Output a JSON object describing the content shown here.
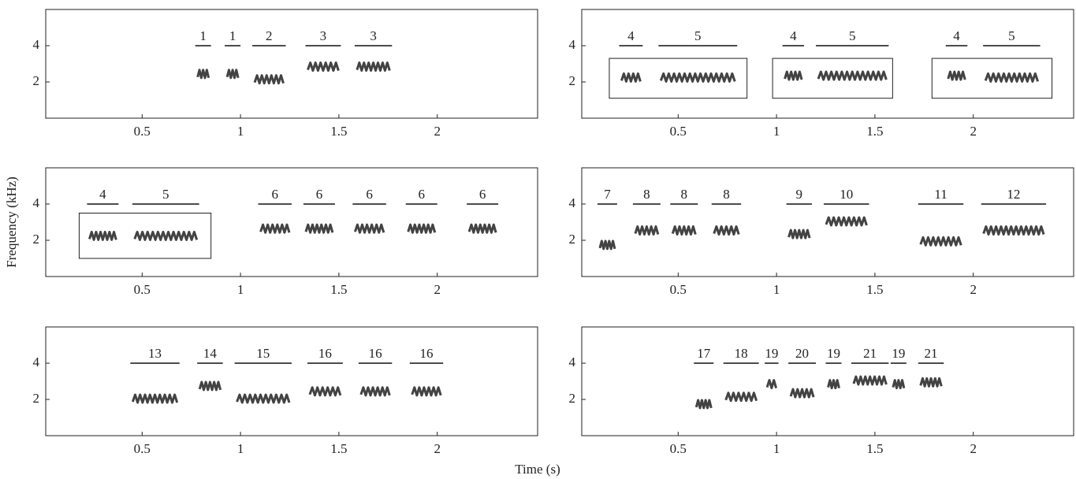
{
  "y_label": "Frequency (kHz)",
  "x_label": "Time (s)",
  "chart_data": [
    {
      "type": "spectrogram",
      "xlim": [
        0.01,
        2.51
      ],
      "ylim": [
        0,
        6
      ],
      "xticks": [
        0.5,
        1,
        1.5,
        2
      ],
      "yticks": [
        2,
        4
      ],
      "syllables": [
        {
          "label": "1",
          "start": 0.77,
          "end": 0.85,
          "freq": 2.4
        },
        {
          "label": "1",
          "start": 0.92,
          "end": 1.0,
          "freq": 2.4
        },
        {
          "label": "2",
          "start": 1.06,
          "end": 1.23,
          "freq": 2.1
        },
        {
          "label": "3",
          "start": 1.33,
          "end": 1.51,
          "freq": 2.8
        },
        {
          "label": "3",
          "start": 1.58,
          "end": 1.77,
          "freq": 2.8
        }
      ],
      "boxes": []
    },
    {
      "type": "spectrogram",
      "xlim": [
        0.01,
        2.51
      ],
      "ylim": [
        0,
        6
      ],
      "xticks": [
        0.5,
        1,
        1.5,
        2
      ],
      "yticks": [
        2,
        4
      ],
      "syllables": [
        {
          "label": "4",
          "start": 0.2,
          "end": 0.32,
          "freq": 2.2
        },
        {
          "label": "5",
          "start": 0.4,
          "end": 0.8,
          "freq": 2.2
        },
        {
          "label": "4",
          "start": 1.03,
          "end": 1.14,
          "freq": 2.3
        },
        {
          "label": "5",
          "start": 1.2,
          "end": 1.57,
          "freq": 2.3
        },
        {
          "label": "4",
          "start": 1.86,
          "end": 1.97,
          "freq": 2.3
        },
        {
          "label": "5",
          "start": 2.05,
          "end": 2.34,
          "freq": 2.2
        }
      ],
      "boxes": [
        {
          "start": 0.15,
          "end": 0.85,
          "low": 1.1,
          "high": 3.3
        },
        {
          "start": 0.98,
          "end": 1.59,
          "low": 1.1,
          "high": 3.3
        },
        {
          "start": 1.79,
          "end": 2.4,
          "low": 1.1,
          "high": 3.3
        }
      ]
    },
    {
      "type": "spectrogram",
      "xlim": [
        0.01,
        2.51
      ],
      "ylim": [
        0,
        6
      ],
      "xticks": [
        0.5,
        1,
        1.5,
        2
      ],
      "yticks": [
        2,
        4
      ],
      "syllables": [
        {
          "label": "4",
          "start": 0.22,
          "end": 0.38,
          "freq": 2.2
        },
        {
          "label": "5",
          "start": 0.45,
          "end": 0.79,
          "freq": 2.2
        },
        {
          "label": "6",
          "start": 1.09,
          "end": 1.26,
          "freq": 2.6
        },
        {
          "label": "6",
          "start": 1.32,
          "end": 1.48,
          "freq": 2.6
        },
        {
          "label": "6",
          "start": 1.57,
          "end": 1.74,
          "freq": 2.6
        },
        {
          "label": "6",
          "start": 1.84,
          "end": 2.0,
          "freq": 2.6
        },
        {
          "label": "6",
          "start": 2.15,
          "end": 2.31,
          "freq": 2.6
        }
      ],
      "boxes": [
        {
          "start": 0.18,
          "end": 0.85,
          "low": 1.0,
          "high": 3.5
        }
      ]
    },
    {
      "type": "spectrogram",
      "xlim": [
        0.01,
        2.51
      ],
      "ylim": [
        0,
        6
      ],
      "xticks": [
        0.5,
        1,
        1.5,
        2
      ],
      "yticks": [
        2,
        4
      ],
      "syllables": [
        {
          "label": "7",
          "start": 0.09,
          "end": 0.19,
          "freq": 1.7
        },
        {
          "label": "8",
          "start": 0.27,
          "end": 0.41,
          "freq": 2.5
        },
        {
          "label": "8",
          "start": 0.46,
          "end": 0.6,
          "freq": 2.5
        },
        {
          "label": "8",
          "start": 0.67,
          "end": 0.82,
          "freq": 2.5
        },
        {
          "label": "9",
          "start": 1.05,
          "end": 1.18,
          "freq": 2.3
        },
        {
          "label": "10",
          "start": 1.24,
          "end": 1.47,
          "freq": 3.0
        },
        {
          "label": "11",
          "start": 1.72,
          "end": 1.95,
          "freq": 1.9
        },
        {
          "label": "12",
          "start": 2.04,
          "end": 2.37,
          "freq": 2.5
        }
      ],
      "boxes": []
    },
    {
      "type": "spectrogram",
      "xlim": [
        0.01,
        2.51
      ],
      "ylim": [
        0,
        6
      ],
      "xticks": [
        0.5,
        1,
        1.5,
        2
      ],
      "yticks": [
        2,
        4
      ],
      "syllables": [
        {
          "label": "13",
          "start": 0.44,
          "end": 0.69,
          "freq": 2.0
        },
        {
          "label": "14",
          "start": 0.78,
          "end": 0.91,
          "freq": 2.7
        },
        {
          "label": "15",
          "start": 0.97,
          "end": 1.26,
          "freq": 2.0
        },
        {
          "label": "16",
          "start": 1.34,
          "end": 1.52,
          "freq": 2.4
        },
        {
          "label": "16",
          "start": 1.6,
          "end": 1.77,
          "freq": 2.4
        },
        {
          "label": "16",
          "start": 1.86,
          "end": 2.03,
          "freq": 2.4
        }
      ],
      "boxes": []
    },
    {
      "type": "spectrogram",
      "xlim": [
        0.01,
        2.51
      ],
      "ylim": [
        0,
        6
      ],
      "xticks": [
        0.5,
        1,
        1.5,
        2
      ],
      "yticks": [
        2,
        4
      ],
      "syllables": [
        {
          "label": "17",
          "start": 0.58,
          "end": 0.68,
          "freq": 1.7
        },
        {
          "label": "18",
          "start": 0.73,
          "end": 0.91,
          "freq": 2.1
        },
        {
          "label": "19",
          "start": 0.94,
          "end": 1.01,
          "freq": 2.8
        },
        {
          "label": "20",
          "start": 1.06,
          "end": 1.2,
          "freq": 2.3
        },
        {
          "label": "19",
          "start": 1.25,
          "end": 1.33,
          "freq": 2.8
        },
        {
          "label": "21",
          "start": 1.38,
          "end": 1.57,
          "freq": 3.0
        },
        {
          "label": "19",
          "start": 1.58,
          "end": 1.66,
          "freq": 2.8
        },
        {
          "label": "21",
          "start": 1.72,
          "end": 1.85,
          "freq": 2.9
        }
      ],
      "boxes": []
    }
  ]
}
